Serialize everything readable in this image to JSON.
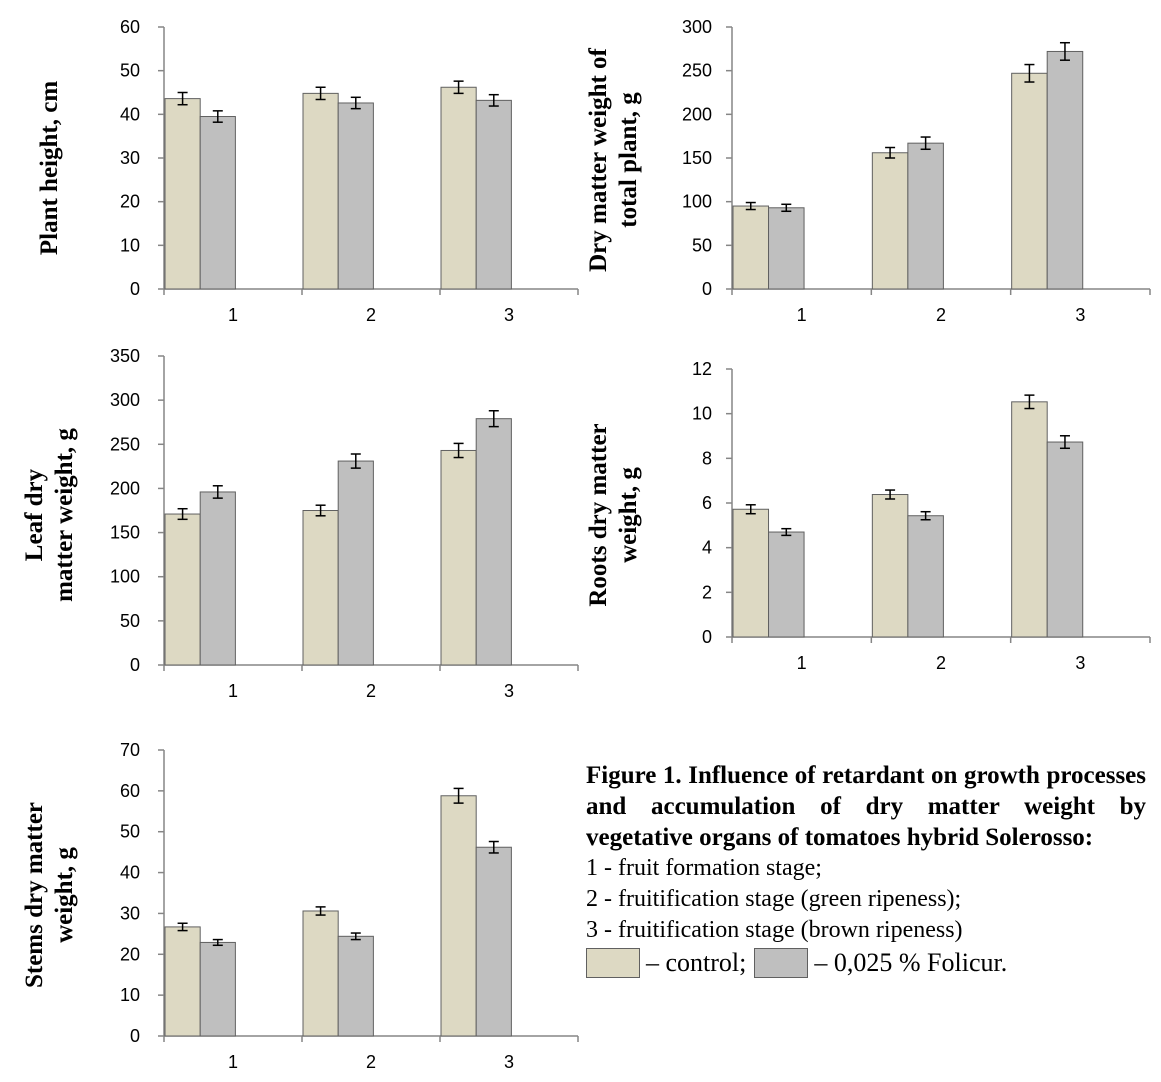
{
  "legend": [
    {
      "label": "– control;",
      "color": "#ddd9c3"
    },
    {
      "label": "– 0,025 % Folicur.",
      "color": "#bfbfbf"
    }
  ],
  "caption": {
    "title": "Figure 1. Influence of retardant on growth processes and accumulation of dry matter weight by vegetative organs of tomatoes hybrid Solerosso:",
    "lines": [
      "1 - fruit formation stage;",
      "2 - fruitification stage (green ripeness);",
      "3 - fruitification stage (brown ripeness)"
    ]
  },
  "chart_data": [
    {
      "type": "bar",
      "ylabel": "Plant height, cm",
      "categories": [
        "1",
        "2",
        "3"
      ],
      "yticks": [
        "0",
        "10",
        "20",
        "30",
        "40",
        "50",
        "60"
      ],
      "ylim": [
        0,
        60
      ],
      "series": [
        {
          "name": "control",
          "values": [
            43.6,
            44.8,
            46.2
          ],
          "errors": [
            1.4,
            1.4,
            1.4
          ]
        },
        {
          "name": "0,025 % Folicur",
          "values": [
            39.5,
            42.6,
            43.2
          ],
          "errors": [
            1.3,
            1.3,
            1.3
          ]
        }
      ]
    },
    {
      "type": "bar",
      "ylabel": "Dry matter weight of total plant, g",
      "categories": [
        "1",
        "2",
        "3"
      ],
      "yticks": [
        "0",
        "50",
        "100",
        "150",
        "200",
        "250",
        "300"
      ],
      "ylim": [
        0,
        300
      ],
      "series": [
        {
          "name": "control",
          "values": [
            95,
            156,
            247
          ],
          "errors": [
            4,
            6,
            10
          ]
        },
        {
          "name": "0,025 % Folicur",
          "values": [
            93,
            167,
            272
          ],
          "errors": [
            4,
            7,
            10
          ]
        }
      ]
    },
    {
      "type": "bar",
      "ylabel": "Leaf dry matter weight, g",
      "categories": [
        "1",
        "2",
        "3"
      ],
      "yticks": [
        "0",
        "50",
        "100",
        "150",
        "200",
        "250",
        "300",
        "350"
      ],
      "ylim": [
        0,
        350
      ],
      "series": [
        {
          "name": "control",
          "values": [
            171,
            175,
            243
          ],
          "errors": [
            6,
            6,
            8
          ]
        },
        {
          "name": "0,025 % Folicur",
          "values": [
            196,
            231,
            279
          ],
          "errors": [
            7,
            8,
            9
          ]
        }
      ]
    },
    {
      "type": "bar",
      "ylabel": "Roots dry matter weight, g",
      "categories": [
        "1",
        "2",
        "3"
      ],
      "yticks": [
        "0",
        "2",
        "4",
        "6",
        "8",
        "10",
        "12"
      ],
      "ylim": [
        0,
        12
      ],
      "series": [
        {
          "name": "control",
          "values": [
            5.72,
            6.38,
            10.53
          ],
          "errors": [
            0.2,
            0.2,
            0.3
          ]
        },
        {
          "name": "0,025 % Folicur",
          "values": [
            4.7,
            5.43,
            8.73
          ],
          "errors": [
            0.15,
            0.18,
            0.28
          ]
        }
      ]
    },
    {
      "type": "bar",
      "ylabel": "Stems dry matter weight, g",
      "categories": [
        "1",
        "2",
        "3"
      ],
      "yticks": [
        "0",
        "10",
        "20",
        "30",
        "40",
        "50",
        "60",
        "70"
      ],
      "ylim": [
        0,
        70
      ],
      "series": [
        {
          "name": "control",
          "values": [
            26.7,
            30.6,
            58.8
          ],
          "errors": [
            0.9,
            1.0,
            1.8
          ]
        },
        {
          "name": "0,025 % Folicur",
          "values": [
            22.9,
            24.4,
            46.2
          ],
          "errors": [
            0.7,
            0.8,
            1.4
          ]
        }
      ]
    }
  ]
}
